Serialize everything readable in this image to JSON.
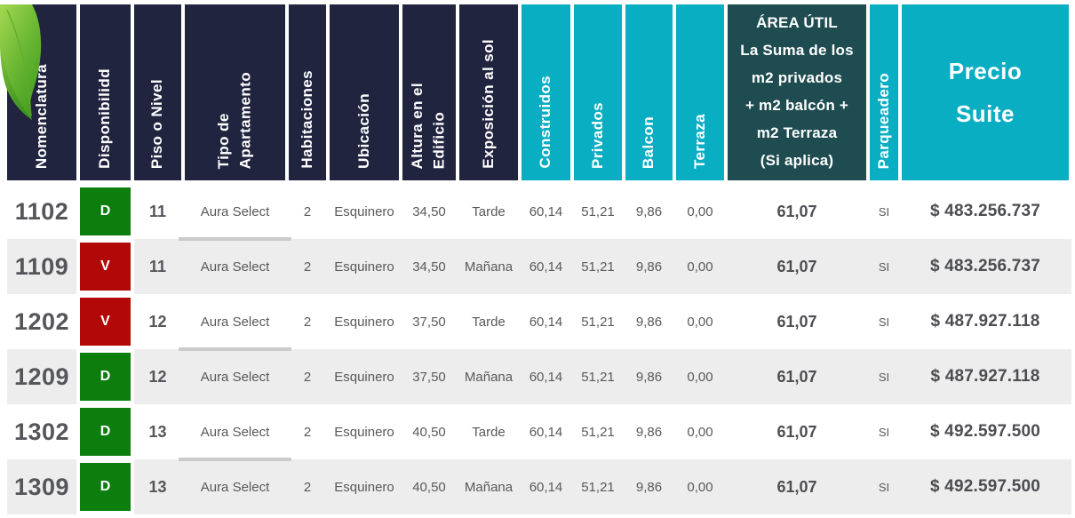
{
  "colors": {
    "navy": "#20243f",
    "cyan": "#0aaec2",
    "darkteal": "#1e4c50",
    "row_alt": "#ededed",
    "badge": {
      "green": "#0c7e0d",
      "red": "#b30808"
    },
    "leaf_light": "#8fca43",
    "leaf_dark": "#3f9a1e"
  },
  "header": {
    "columns": [
      {
        "key": "nomenclatura",
        "label": "Nomenclatura",
        "style": "navy",
        "orientation": "vertical"
      },
      {
        "key": "disponibilidad",
        "label": "Disponibilidd",
        "style": "navy",
        "orientation": "vertical"
      },
      {
        "key": "piso",
        "label": "Piso o Nivel",
        "style": "navy",
        "orientation": "vertical"
      },
      {
        "key": "tipo",
        "label": "Tipo de\nApartamento",
        "style": "navy",
        "orientation": "vertical"
      },
      {
        "key": "habitaciones",
        "label": "Habitaciones",
        "style": "navy",
        "orientation": "vertical"
      },
      {
        "key": "ubicacion",
        "label": "Ubicación",
        "style": "navy",
        "orientation": "vertical"
      },
      {
        "key": "altura",
        "label": "Altura en el\nEdificio",
        "style": "navy",
        "orientation": "vertical"
      },
      {
        "key": "exposicion",
        "label": "Exposición al sol",
        "style": "navy",
        "orientation": "vertical"
      },
      {
        "key": "construidos",
        "label": "Construidos",
        "style": "cyan",
        "orientation": "vertical"
      },
      {
        "key": "privados",
        "label": "Privados",
        "style": "cyan",
        "orientation": "vertical"
      },
      {
        "key": "balcon",
        "label": "Balcon",
        "style": "cyan",
        "orientation": "vertical"
      },
      {
        "key": "terraza",
        "label": "Terraza",
        "style": "cyan",
        "orientation": "vertical"
      },
      {
        "key": "area_util",
        "label": "ÁREA ÚTIL\nLa Suma de los\nm2 privados\n+ m2 balcón +\nm2 Terraza\n(Si aplica)",
        "style": "darkteal",
        "orientation": "horizontal"
      },
      {
        "key": "parqueadero",
        "label": "Parqueadero",
        "style": "cyan",
        "orientation": "vertical"
      },
      {
        "key": "precio",
        "label": "Precio\nSuite",
        "style": "cyan",
        "orientation": "horizontal"
      }
    ]
  },
  "rows": [
    {
      "nomenclatura": "1102",
      "disponibilidad": "D",
      "disponibilidad_color": "green",
      "piso": "11",
      "tipo": "Aura Select",
      "habitaciones": "2",
      "ubicacion": "Esquinero",
      "altura": "34,50",
      "exposicion": "Tarde",
      "construidos": "60,14",
      "privados": "51,21",
      "balcon": "9,86",
      "terraza": "0,00",
      "area_util": "61,07",
      "parqueadero": "SI",
      "precio": "$ 483.256.737"
    },
    {
      "nomenclatura": "1109",
      "disponibilidad": "V",
      "disponibilidad_color": "red",
      "piso": "11",
      "tipo": "Aura Select",
      "habitaciones": "2",
      "ubicacion": "Esquinero",
      "altura": "34,50",
      "exposicion": "Mañana",
      "construidos": "60,14",
      "privados": "51,21",
      "balcon": "9,86",
      "terraza": "0,00",
      "area_util": "61,07",
      "parqueadero": "SI",
      "precio": "$ 483.256.737"
    },
    {
      "nomenclatura": "1202",
      "disponibilidad": "V",
      "disponibilidad_color": "red",
      "piso": "12",
      "tipo": "Aura Select",
      "habitaciones": "2",
      "ubicacion": "Esquinero",
      "altura": "37,50",
      "exposicion": "Tarde",
      "construidos": "60,14",
      "privados": "51,21",
      "balcon": "9,86",
      "terraza": "0,00",
      "area_util": "61,07",
      "parqueadero": "SI",
      "precio": "$ 487.927.118"
    },
    {
      "nomenclatura": "1209",
      "disponibilidad": "D",
      "disponibilidad_color": "green",
      "piso": "12",
      "tipo": "Aura Select",
      "habitaciones": "2",
      "ubicacion": "Esquinero",
      "altura": "37,50",
      "exposicion": "Mañana",
      "construidos": "60,14",
      "privados": "51,21",
      "balcon": "9,86",
      "terraza": "0,00",
      "area_util": "61,07",
      "parqueadero": "SI",
      "precio": "$ 487.927.118"
    },
    {
      "nomenclatura": "1302",
      "disponibilidad": "D",
      "disponibilidad_color": "green",
      "piso": "13",
      "tipo": "Aura Select",
      "habitaciones": "2",
      "ubicacion": "Esquinero",
      "altura": "40,50",
      "exposicion": "Tarde",
      "construidos": "60,14",
      "privados": "51,21",
      "balcon": "9,86",
      "terraza": "0,00",
      "area_util": "61,07",
      "parqueadero": "SI",
      "precio": "$ 492.597.500"
    },
    {
      "nomenclatura": "1309",
      "disponibilidad": "D",
      "disponibilidad_color": "green",
      "piso": "13",
      "tipo": "Aura Select",
      "habitaciones": "2",
      "ubicacion": "Esquinero",
      "altura": "40,50",
      "exposicion": "Mañana",
      "construidos": "60,14",
      "privados": "51,21",
      "balcon": "9,86",
      "terraza": "0,00",
      "area_util": "61,07",
      "parqueadero": "SI",
      "precio": "$ 492.597.500"
    }
  ]
}
